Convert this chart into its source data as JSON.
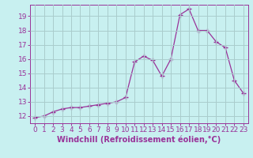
{
  "x": [
    0,
    1,
    2,
    3,
    4,
    5,
    6,
    7,
    8,
    9,
    10,
    11,
    12,
    13,
    14,
    15,
    16,
    17,
    18,
    19,
    20,
    21,
    22,
    23
  ],
  "y": [
    11.9,
    12.0,
    12.3,
    12.5,
    12.6,
    12.6,
    12.7,
    12.8,
    12.9,
    13.0,
    13.3,
    15.8,
    16.2,
    15.9,
    14.8,
    16.0,
    19.1,
    19.5,
    18.0,
    18.0,
    17.2,
    16.8,
    14.5,
    13.6
  ],
  "line_color": "#993399",
  "marker": "+",
  "marker_size": 4,
  "bg_color": "#c8f0f0",
  "grid_color": "#aacccc",
  "xlabel": "Windchill (Refroidissement éolien,°C)",
  "xlabel_fontsize": 7,
  "tick_fontsize": 6.5,
  "ylim": [
    11.5,
    19.8
  ],
  "yticks": [
    12,
    13,
    14,
    15,
    16,
    17,
    18,
    19
  ],
  "xticks": [
    0,
    1,
    2,
    3,
    4,
    5,
    6,
    7,
    8,
    9,
    10,
    11,
    12,
    13,
    14,
    15,
    16,
    17,
    18,
    19,
    20,
    21,
    22,
    23
  ]
}
